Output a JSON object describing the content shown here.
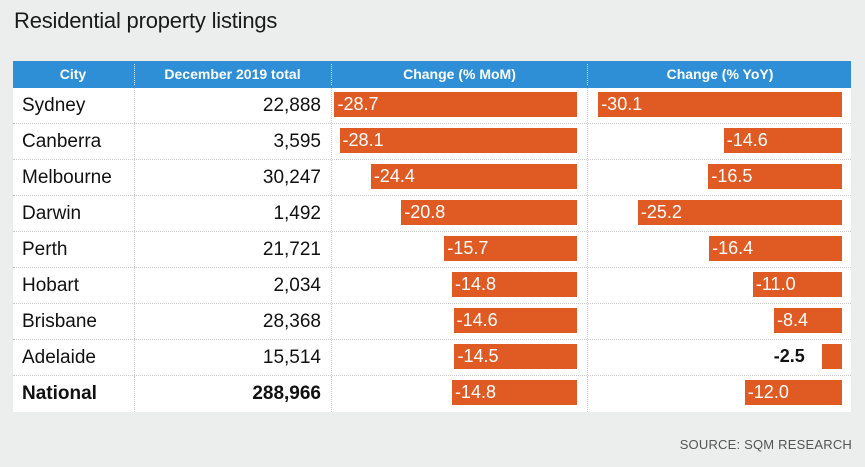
{
  "title": "Residential property listings",
  "source": "SOURCE: SQM RESEARCH",
  "colors": {
    "header": "#2e8fd6",
    "bar": "#e05a24",
    "background": "#eceded"
  },
  "headers": {
    "city": "City",
    "total": "December 2019 total",
    "mom": "Change (% MoM)",
    "yoy": "Change (% YoY)"
  },
  "chart_data": {
    "type": "table",
    "title": "Residential property listings",
    "columns": [
      "City",
      "December 2019 total",
      "Change (% MoM)",
      "Change (% YoY)"
    ],
    "rows": [
      {
        "city": "Sydney",
        "total": "22,888",
        "mom": -28.7,
        "yoy": -30.1,
        "mom_label": "-28.7",
        "yoy_label": "-30.1"
      },
      {
        "city": "Canberra",
        "total": "3,595",
        "mom": -28.1,
        "yoy": -14.6,
        "mom_label": "-28.1",
        "yoy_label": "-14.6"
      },
      {
        "city": "Melbourne",
        "total": "30,247",
        "mom": -24.4,
        "yoy": -16.5,
        "mom_label": "-24.4",
        "yoy_label": "-16.5"
      },
      {
        "city": "Darwin",
        "total": "1,492",
        "mom": -20.8,
        "yoy": -25.2,
        "mom_label": "-20.8",
        "yoy_label": "-25.2"
      },
      {
        "city": "Perth",
        "total": "21,721",
        "mom": -15.7,
        "yoy": -16.4,
        "mom_label": "-15.7",
        "yoy_label": "-16.4"
      },
      {
        "city": "Hobart",
        "total": "2,034",
        "mom": -14.8,
        "yoy": -11.0,
        "mom_label": "-14.8",
        "yoy_label": "-11.0"
      },
      {
        "city": "Brisbane",
        "total": "28,368",
        "mom": -14.6,
        "yoy": -8.4,
        "mom_label": "-14.6",
        "yoy_label": "-8.4"
      },
      {
        "city": "Adelaide",
        "total": "15,514",
        "mom": -14.5,
        "yoy": -2.5,
        "mom_label": "-14.5",
        "yoy_label": "-2.5"
      },
      {
        "city": "National",
        "total": "288,966",
        "mom": -14.8,
        "yoy": -12.0,
        "mom_label": "-14.8",
        "yoy_label": "-12.0",
        "bold": true
      }
    ]
  }
}
